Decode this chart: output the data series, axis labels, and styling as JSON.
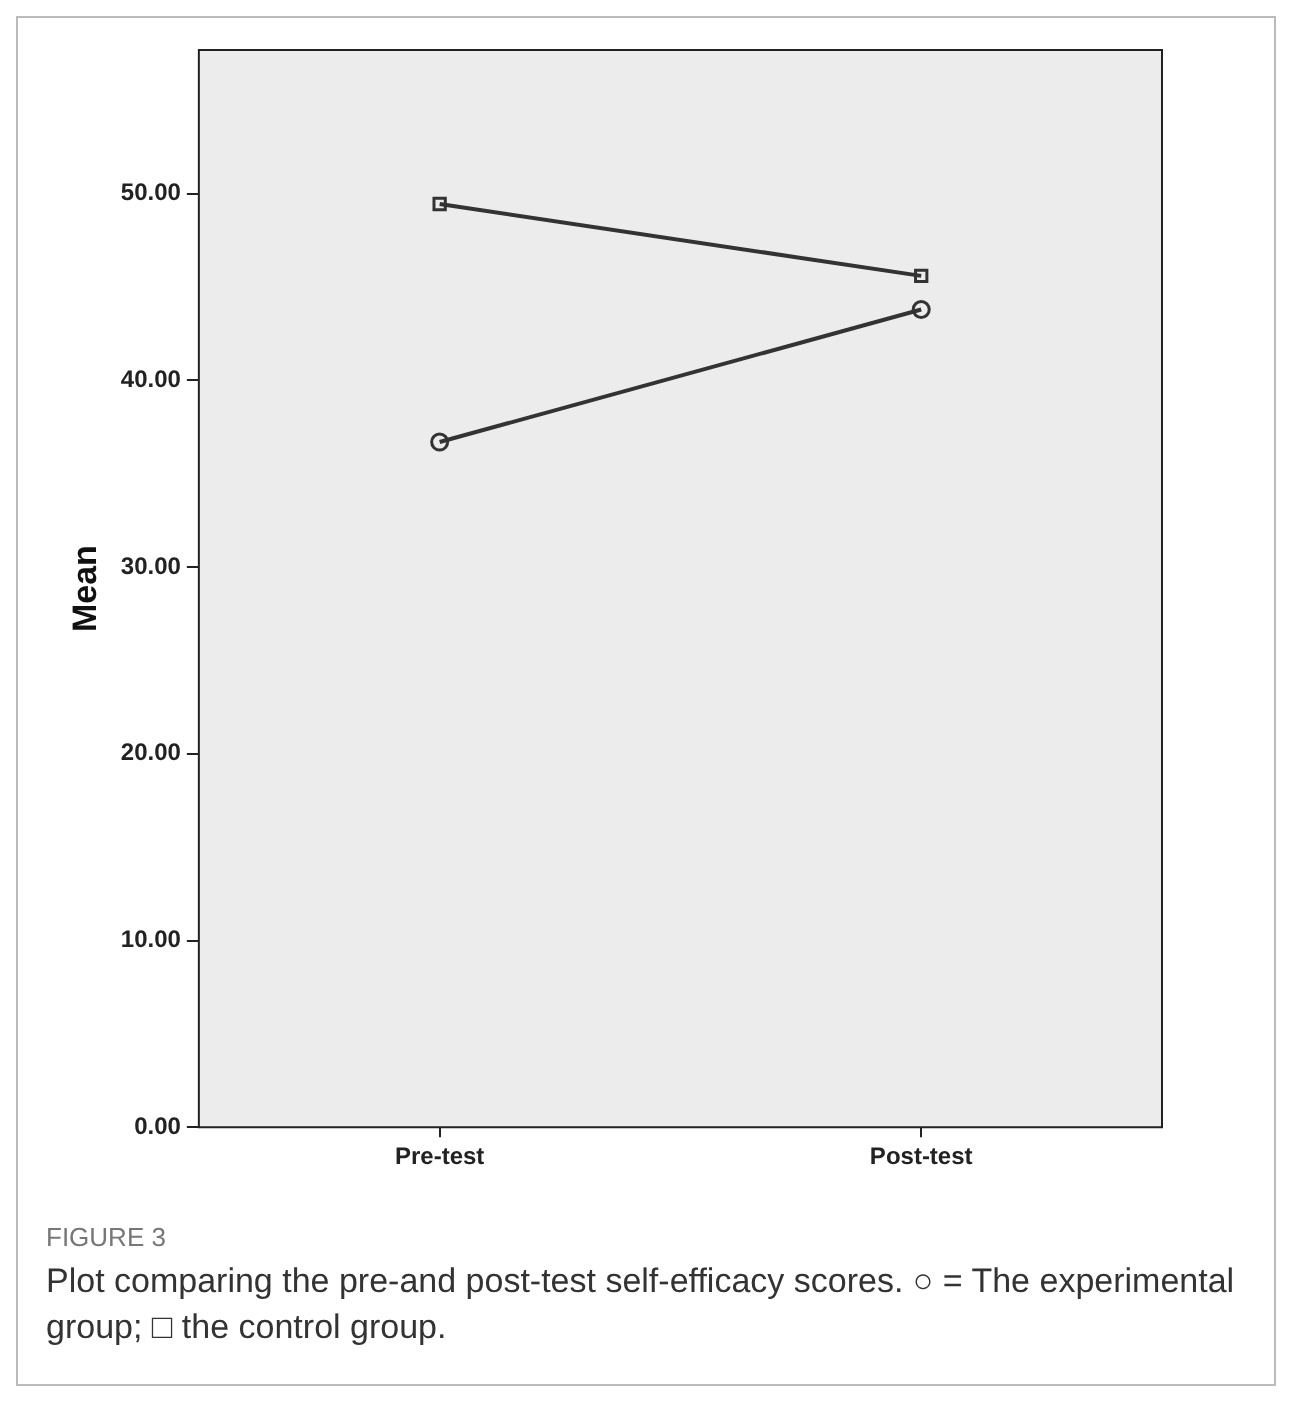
{
  "chart_data": {
    "type": "line",
    "ylabel": "Mean",
    "categories": [
      "Pre-test",
      "Post-test"
    ],
    "series": [
      {
        "color": "#333333",
        "values": [
          49.45,
          45.6
        ],
        "marker": "square"
      },
      {
        "color": "#333333",
        "values": [
          36.7,
          43.8
        ],
        "marker": "circle"
      }
    ],
    "ylim": [
      0,
      57.7
    ],
    "yticks": [
      {
        "value": 0,
        "label": "0.00"
      },
      {
        "value": 10,
        "label": "10.00"
      },
      {
        "value": 20,
        "label": "20.00"
      },
      {
        "value": 30,
        "label": "30.00"
      },
      {
        "value": 40,
        "label": "40.00"
      },
      {
        "value": 50,
        "label": "50.00"
      }
    ],
    "grid": false,
    "legend": false,
    "annotations": [
      "FIGURE 3",
      "Plot comparing the pre-and post-test self-efficacy scores. ○ = The experimental group; □ the control group."
    ]
  }
}
